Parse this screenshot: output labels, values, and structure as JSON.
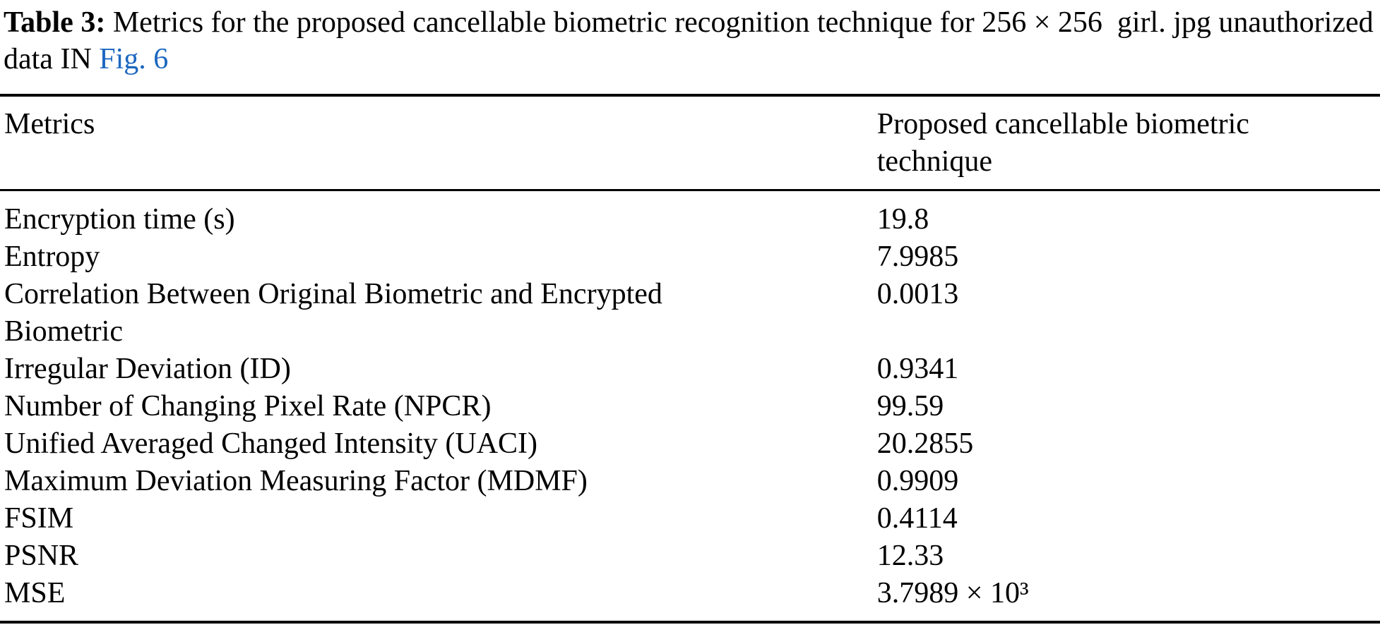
{
  "caption": {
    "label": "Table 3:",
    "text": " Metrics for the proposed cancellable biometric recognition technique for 256 × 256  girl. jpg unauthorized data IN ",
    "link": "Fig. 6"
  },
  "link_color": "#1C67C0",
  "table": {
    "header": {
      "metrics": "Metrics",
      "technique": "Proposed cancellable biometric technique"
    },
    "rows": [
      {
        "metric": "Encryption time (s)",
        "value": "19.8"
      },
      {
        "metric": "Entropy",
        "value": "7.9985"
      },
      {
        "metric": "Correlation Between Original Biometric and Encrypted Biometric",
        "value": "0.0013"
      },
      {
        "metric": "Irregular Deviation (ID)",
        "value": "0.9341"
      },
      {
        "metric": "Number of Changing Pixel Rate (NPCR)",
        "value": "99.59"
      },
      {
        "metric": "Unified Averaged Changed Intensity (UACI)",
        "value": "20.2855"
      },
      {
        "metric": "Maximum Deviation Measuring Factor (MDMF)",
        "value": "0.9909"
      },
      {
        "metric": "FSIM",
        "value": "0.4114"
      },
      {
        "metric": "PSNR",
        "value": "12.33"
      },
      {
        "metric": "MSE",
        "value": "3.7989 × 10³"
      }
    ]
  }
}
